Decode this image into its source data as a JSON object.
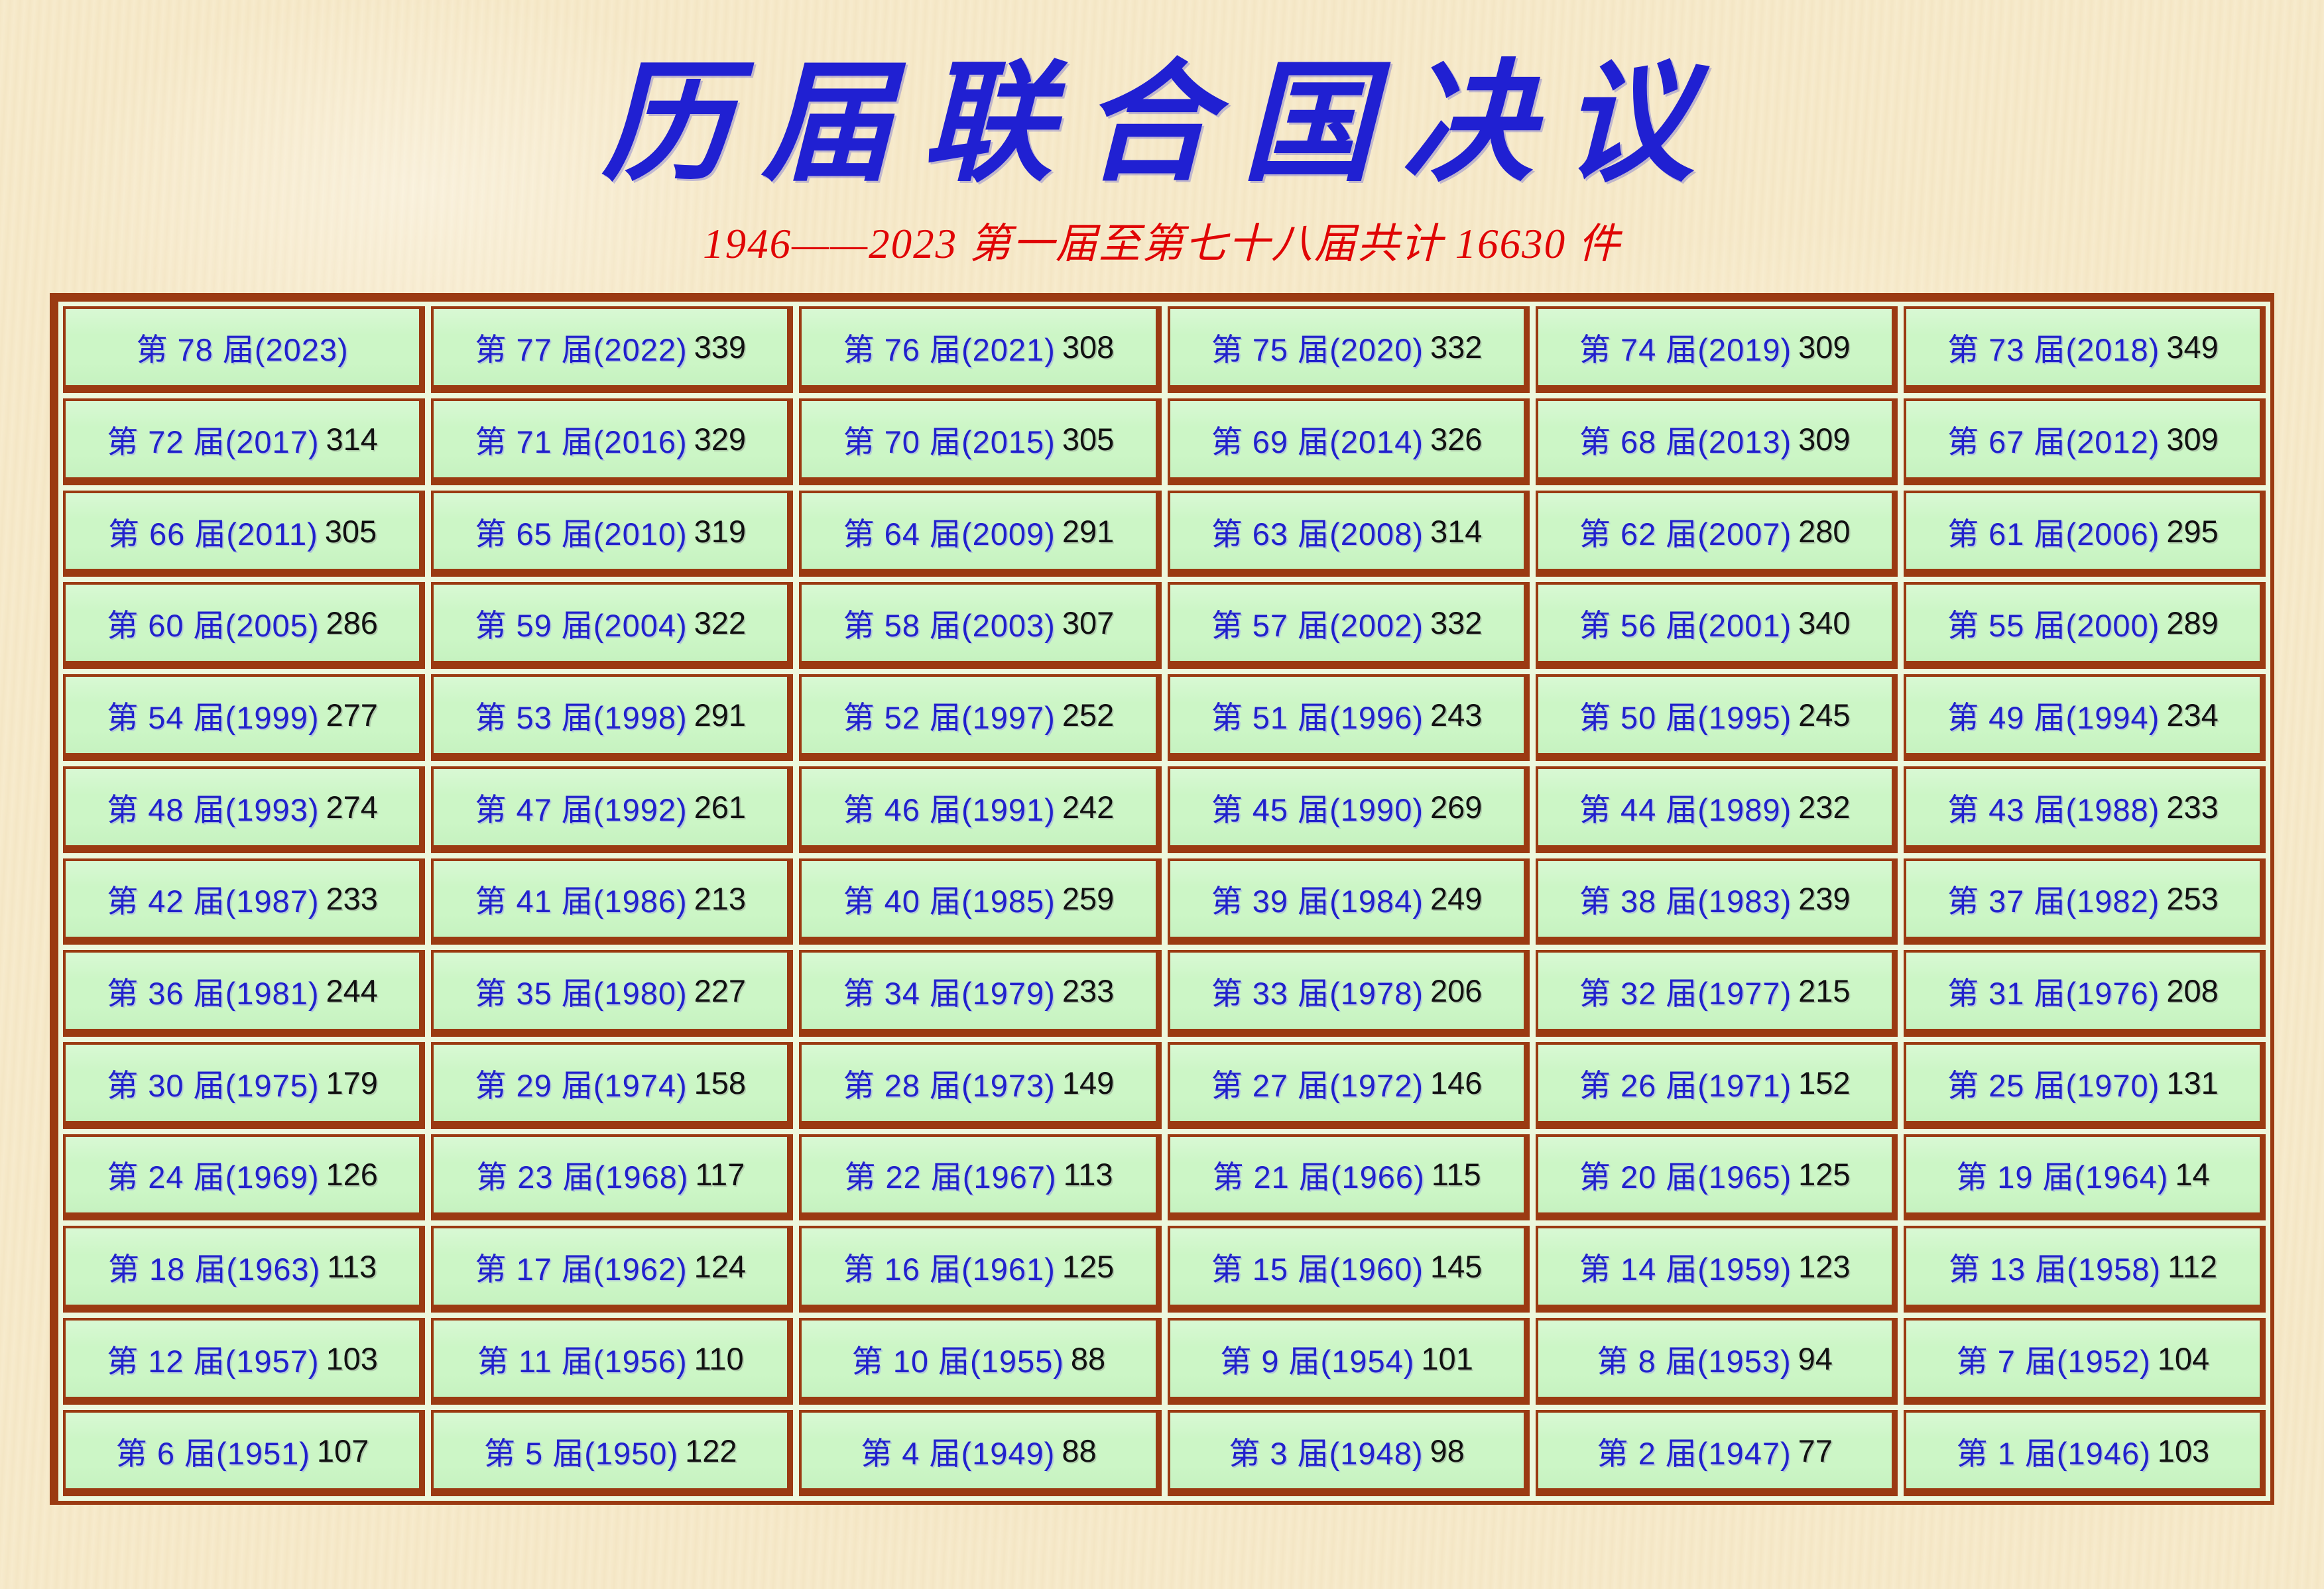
{
  "page": {
    "title": "历届联合国决议",
    "subtitle": "1946——2023 第一届至第七十八届共计 16630 件"
  },
  "colors": {
    "background_parchment": "#f6e9c9",
    "title_blue": "#2020d2",
    "subtitle_red": "#e00505",
    "border_brown": "#9b3a12",
    "cell_green": "#ccf6c6",
    "table_gap_green": "#edf8dd",
    "count_black": "#111111"
  },
  "table": {
    "columns": 6,
    "rows": 13,
    "label_format": "第 {session} 届({year})",
    "total_label": "16630",
    "cells": [
      {
        "session": 78,
        "year": 2023,
        "count": null
      },
      {
        "session": 77,
        "year": 2022,
        "count": 339
      },
      {
        "session": 76,
        "year": 2021,
        "count": 308
      },
      {
        "session": 75,
        "year": 2020,
        "count": 332
      },
      {
        "session": 74,
        "year": 2019,
        "count": 309
      },
      {
        "session": 73,
        "year": 2018,
        "count": 349
      },
      {
        "session": 72,
        "year": 2017,
        "count": 314
      },
      {
        "session": 71,
        "year": 2016,
        "count": 329
      },
      {
        "session": 70,
        "year": 2015,
        "count": 305
      },
      {
        "session": 69,
        "year": 2014,
        "count": 326
      },
      {
        "session": 68,
        "year": 2013,
        "count": 309
      },
      {
        "session": 67,
        "year": 2012,
        "count": 309
      },
      {
        "session": 66,
        "year": 2011,
        "count": 305
      },
      {
        "session": 65,
        "year": 2010,
        "count": 319
      },
      {
        "session": 64,
        "year": 2009,
        "count": 291
      },
      {
        "session": 63,
        "year": 2008,
        "count": 314
      },
      {
        "session": 62,
        "year": 2007,
        "count": 280
      },
      {
        "session": 61,
        "year": 2006,
        "count": 295
      },
      {
        "session": 60,
        "year": 2005,
        "count": 286
      },
      {
        "session": 59,
        "year": 2004,
        "count": 322
      },
      {
        "session": 58,
        "year": 2003,
        "count": 307
      },
      {
        "session": 57,
        "year": 2002,
        "count": 332
      },
      {
        "session": 56,
        "year": 2001,
        "count": 340
      },
      {
        "session": 55,
        "year": 2000,
        "count": 289
      },
      {
        "session": 54,
        "year": 1999,
        "count": 277
      },
      {
        "session": 53,
        "year": 1998,
        "count": 291
      },
      {
        "session": 52,
        "year": 1997,
        "count": 252
      },
      {
        "session": 51,
        "year": 1996,
        "count": 243
      },
      {
        "session": 50,
        "year": 1995,
        "count": 245
      },
      {
        "session": 49,
        "year": 1994,
        "count": 234
      },
      {
        "session": 48,
        "year": 1993,
        "count": 274
      },
      {
        "session": 47,
        "year": 1992,
        "count": 261
      },
      {
        "session": 46,
        "year": 1991,
        "count": 242
      },
      {
        "session": 45,
        "year": 1990,
        "count": 269
      },
      {
        "session": 44,
        "year": 1989,
        "count": 232
      },
      {
        "session": 43,
        "year": 1988,
        "count": 233
      },
      {
        "session": 42,
        "year": 1987,
        "count": 233
      },
      {
        "session": 41,
        "year": 1986,
        "count": 213
      },
      {
        "session": 40,
        "year": 1985,
        "count": 259
      },
      {
        "session": 39,
        "year": 1984,
        "count": 249
      },
      {
        "session": 38,
        "year": 1983,
        "count": 239
      },
      {
        "session": 37,
        "year": 1982,
        "count": 253
      },
      {
        "session": 36,
        "year": 1981,
        "count": 244
      },
      {
        "session": 35,
        "year": 1980,
        "count": 227
      },
      {
        "session": 34,
        "year": 1979,
        "count": 233
      },
      {
        "session": 33,
        "year": 1978,
        "count": 206
      },
      {
        "session": 32,
        "year": 1977,
        "count": 215
      },
      {
        "session": 31,
        "year": 1976,
        "count": 208
      },
      {
        "session": 30,
        "year": 1975,
        "count": 179
      },
      {
        "session": 29,
        "year": 1974,
        "count": 158
      },
      {
        "session": 28,
        "year": 1973,
        "count": 149
      },
      {
        "session": 27,
        "year": 1972,
        "count": 146
      },
      {
        "session": 26,
        "year": 1971,
        "count": 152
      },
      {
        "session": 25,
        "year": 1970,
        "count": 131
      },
      {
        "session": 24,
        "year": 1969,
        "count": 126
      },
      {
        "session": 23,
        "year": 1968,
        "count": 117
      },
      {
        "session": 22,
        "year": 1967,
        "count": 113
      },
      {
        "session": 21,
        "year": 1966,
        "count": 115
      },
      {
        "session": 20,
        "year": 1965,
        "count": 125
      },
      {
        "session": 19,
        "year": 1964,
        "count": 14
      },
      {
        "session": 18,
        "year": 1963,
        "count": 113
      },
      {
        "session": 17,
        "year": 1962,
        "count": 124
      },
      {
        "session": 16,
        "year": 1961,
        "count": 125
      },
      {
        "session": 15,
        "year": 1960,
        "count": 145
      },
      {
        "session": 14,
        "year": 1959,
        "count": 123
      },
      {
        "session": 13,
        "year": 1958,
        "count": 112
      },
      {
        "session": 12,
        "year": 1957,
        "count": 103
      },
      {
        "session": 11,
        "year": 1956,
        "count": 110
      },
      {
        "session": 10,
        "year": 1955,
        "count": 88
      },
      {
        "session": 9,
        "year": 1954,
        "count": 101
      },
      {
        "session": 8,
        "year": 1953,
        "count": 94
      },
      {
        "session": 7,
        "year": 1952,
        "count": 104
      },
      {
        "session": 6,
        "year": 1951,
        "count": 107
      },
      {
        "session": 5,
        "year": 1950,
        "count": 122
      },
      {
        "session": 4,
        "year": 1949,
        "count": 88
      },
      {
        "session": 3,
        "year": 1948,
        "count": 98
      },
      {
        "session": 2,
        "year": 1947,
        "count": 77
      },
      {
        "session": 1,
        "year": 1946,
        "count": 103
      }
    ]
  }
}
